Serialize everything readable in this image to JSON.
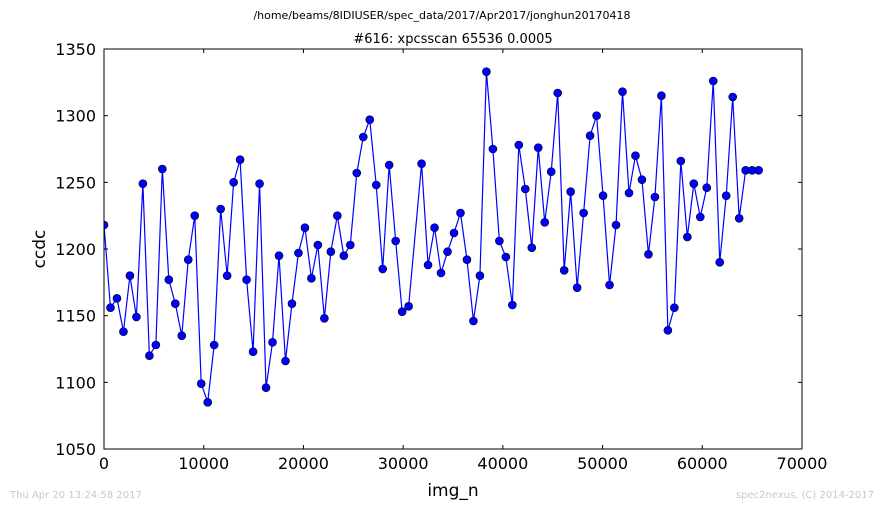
{
  "header": {
    "path": "/home/beams/8IDIUSER/spec_data/2017/Apr2017/jonghun20170418"
  },
  "footer": {
    "timestamp": "Thu Apr 20 13:24:58 2017",
    "credit": "spec2nexus, (C) 2014-2017"
  },
  "colors": {
    "series": "#0000ff",
    "marker_fill": "#0000ff"
  },
  "chart_data": {
    "type": "line",
    "title": "#616: xpcsscan 65536 0.0005",
    "xlabel": "img_n",
    "ylabel": "ccdc",
    "xlim": [
      0,
      70000
    ],
    "ylim": [
      1050,
      1350
    ],
    "xticks": [
      0,
      10000,
      20000,
      30000,
      40000,
      50000,
      60000,
      70000
    ],
    "yticks": [
      1050,
      1100,
      1150,
      1200,
      1250,
      1300,
      1350
    ],
    "grid": false,
    "legend": "none",
    "series": [
      {
        "x": [
          0,
          650,
          1300,
          1950,
          2600,
          3250,
          3900,
          4550,
          5200,
          5850,
          6500,
          7150,
          7800,
          8450,
          9100,
          9750,
          10400,
          11050,
          11700,
          12350,
          13000,
          13650,
          14300,
          14950,
          15600,
          16250,
          16900,
          17550,
          18200,
          18850,
          19500,
          20150,
          20800,
          21450,
          22100,
          22750,
          23400,
          24050,
          24700,
          25350,
          26000,
          26650,
          27300,
          27950,
          28600,
          29250,
          29900,
          30550,
          31850,
          32500,
          33150,
          33800,
          34450,
          35100,
          35750,
          36400,
          37050,
          37700,
          38350,
          39000,
          39650,
          40300,
          40950,
          41600,
          42250,
          42900,
          43550,
          44200,
          44850,
          45500,
          46150,
          46800,
          47450,
          48100,
          48750,
          49400,
          50050,
          50700,
          51350,
          52000,
          52650,
          53300,
          53950,
          54600,
          55250,
          55900,
          56550,
          57200,
          57850,
          58500,
          59150,
          59800,
          60450,
          61100,
          61750,
          62400,
          63050,
          63700,
          64350,
          65000,
          65650
        ],
        "y": [
          1218,
          1156,
          1163,
          1138,
          1180,
          1149,
          1249,
          1120,
          1128,
          1260,
          1177,
          1159,
          1135,
          1192,
          1225,
          1099,
          1085,
          1128,
          1230,
          1180,
          1250,
          1267,
          1177,
          1123,
          1249,
          1096,
          1130,
          1195,
          1116,
          1159,
          1197,
          1216,
          1178,
          1203,
          1148,
          1198,
          1225,
          1195,
          1203,
          1257,
          1284,
          1297,
          1248,
          1185,
          1263,
          1206,
          1153,
          1157,
          1264,
          1188,
          1216,
          1182,
          1198,
          1212,
          1227,
          1192,
          1146,
          1180,
          1333,
          1275,
          1206,
          1194,
          1158,
          1278,
          1245,
          1201,
          1276,
          1220,
          1258,
          1317,
          1184,
          1243,
          1171,
          1227,
          1285,
          1300,
          1240,
          1173,
          1218,
          1318,
          1242,
          1270,
          1252,
          1196,
          1239,
          1315,
          1139,
          1156,
          1266,
          1209,
          1249,
          1224,
          1246,
          1326,
          1190,
          1240,
          1314,
          1223,
          1259,
          1259,
          1259
        ]
      }
    ]
  }
}
